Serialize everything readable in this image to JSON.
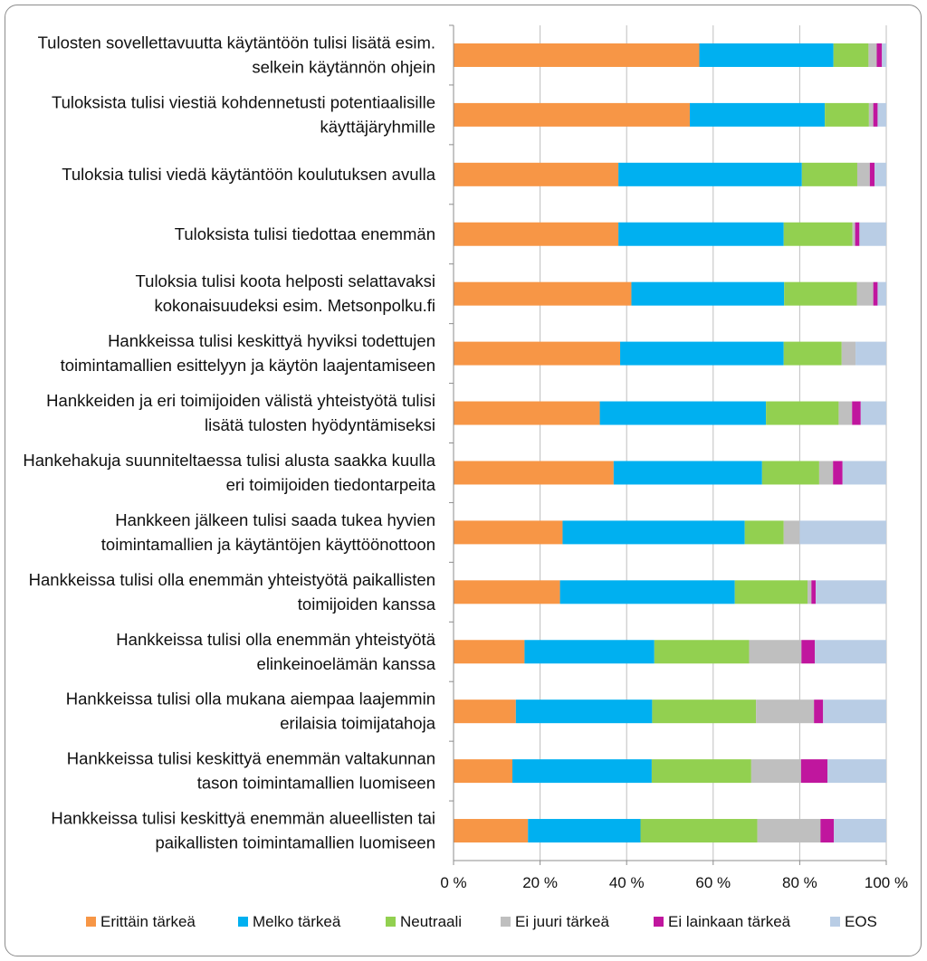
{
  "chart_data": {
    "type": "stacked-bar-horizontal-100",
    "title": "",
    "xlabel": "",
    "ylabel": "",
    "xlim": [
      0,
      100
    ],
    "x_ticks": [
      "0 %",
      "20 %",
      "40 %",
      "60 %",
      "80 %",
      "100 %"
    ],
    "grid": true,
    "legend_position": "bottom",
    "categories": [
      [
        "Tulosten sovellettavuutta käytäntöön tulisi lisätä esim.",
        "selkein käytännön ohjein"
      ],
      [
        "Tuloksista tulisi viestiä kohdennetusti potentiaalisille",
        "käyttäjäryhmille"
      ],
      [
        "Tuloksia tulisi viedä käytäntöön koulutuksen avulla"
      ],
      [
        "Tuloksista tulisi tiedottaa enemmän"
      ],
      [
        "Tuloksia tulisi koota helposti selattavaksi",
        "kokonaisuudeksi esim. Metsonpolku.fi"
      ],
      [
        "Hankkeissa tulisi keskittyä hyviksi todettujen",
        "toimintamallien esittelyyn ja käytön laajentamiseen"
      ],
      [
        "Hankkeiden ja eri toimijoiden välistä yhteistyötä tulisi",
        "lisätä tulosten hyödyntämiseksi"
      ],
      [
        "Hankehakuja suunniteltaessa tulisi alusta saakka kuulla",
        "eri toimijoiden tiedontarpeita"
      ],
      [
        "Hankkeen jälkeen tulisi saada tukea hyvien",
        "toimintamallien ja käytäntöjen käyttöönottoon"
      ],
      [
        "Hankkeissa tulisi olla enemmän yhteistyötä paikallisten",
        "toimijoiden kanssa"
      ],
      [
        "Hankkeissa tulisi olla enemmän yhteistyötä",
        "elinkeinoelämän kanssa"
      ],
      [
        "Hankkeissa tulisi olla mukana aiempaa laajemmin",
        "erilaisia toimijatahoja"
      ],
      [
        "Hankkeissa tulisi keskittyä enemmän valtakunnan",
        "tason toimintamallien luomiseen"
      ],
      [
        "Hankkeissa tulisi keskittyä enemmän alueellisten tai",
        "paikallisten toimintamallien luomiseen"
      ]
    ],
    "series": [
      {
        "name": "Erittäin tärkeä",
        "color": "#f79646",
        "values": [
          56.8,
          54.6,
          38.1,
          38.1,
          41.1,
          38.5,
          33.8,
          37.0,
          25.2,
          24.6,
          16.4,
          14.4,
          13.6,
          17.2
        ]
      },
      {
        "name": "Melko tärkeä",
        "color": "#00b0f0",
        "values": [
          31.0,
          31.2,
          42.4,
          38.2,
          35.3,
          37.8,
          38.4,
          34.3,
          42.1,
          40.4,
          30.0,
          31.5,
          32.2,
          26.0
        ]
      },
      {
        "name": "Neutraali",
        "color": "#92d050",
        "values": [
          8.1,
          10.2,
          12.8,
          15.9,
          16.8,
          13.4,
          16.8,
          13.2,
          9.0,
          16.8,
          21.9,
          24.0,
          23.0,
          27.0
        ]
      },
      {
        "name": "Ei juuri tärkeä",
        "color": "#bfbfbf",
        "values": [
          1.9,
          1.0,
          2.9,
          0.6,
          3.8,
          3.2,
          3.1,
          3.2,
          3.7,
          0.9,
          12.1,
          13.4,
          11.5,
          14.6
        ]
      },
      {
        "name": "Ei lainkaan tärkeä",
        "color": "#c0169e",
        "values": [
          1.2,
          1.0,
          1.1,
          1.0,
          1.0,
          0,
          2.0,
          2.2,
          0,
          1.0,
          3.1,
          2.1,
          6.1,
          3.1
        ]
      },
      {
        "name": "EOS",
        "color": "#b9cde5",
        "values": [
          1.0,
          2.0,
          2.7,
          6.2,
          2.0,
          7.1,
          5.9,
          10.1,
          20.0,
          16.3,
          16.5,
          14.6,
          13.6,
          12.1
        ]
      }
    ]
  }
}
